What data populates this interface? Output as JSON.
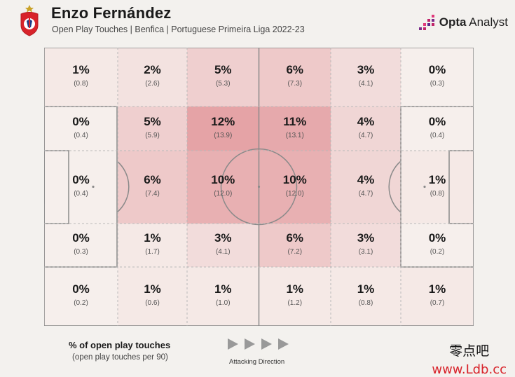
{
  "header": {
    "title": "Enzo Fernández",
    "subtitle": "Open Play Touches | Benfica | Portuguese Primeira Liga 2022-23",
    "brand": "Opta Analyst",
    "brand_bold": "Opta",
    "brand_rest": " Analyst",
    "crest_icon": "benfica-crest-icon"
  },
  "colors": {
    "background": "#f3f1ee",
    "pitch_lines": "#8a8a8a",
    "heat_low": "#f6efec",
    "heat_high": "#e5a3a6"
  },
  "chart_data": {
    "type": "heatmap",
    "title": "Enzo Fernández",
    "subtitle": "Open Play Touches | Benfica | Portuguese Primeira Liga 2022-23",
    "rows": 5,
    "cols": 6,
    "value_label": "% of open play touches",
    "secondary_label": "(open play touches per 90)",
    "direction": "Attacking Direction",
    "cells": [
      [
        {
          "pct": "1%",
          "per90": "(0.8)",
          "value": 1
        },
        {
          "pct": "2%",
          "per90": "(2.6)",
          "value": 2
        },
        {
          "pct": "5%",
          "per90": "(5.3)",
          "value": 5
        },
        {
          "pct": "6%",
          "per90": "(7.3)",
          "value": 6
        },
        {
          "pct": "3%",
          "per90": "(4.1)",
          "value": 3
        },
        {
          "pct": "0%",
          "per90": "(0.3)",
          "value": 0
        }
      ],
      [
        {
          "pct": "0%",
          "per90": "(0.4)",
          "value": 0
        },
        {
          "pct": "5%",
          "per90": "(5.9)",
          "value": 5
        },
        {
          "pct": "12%",
          "per90": "(13.9)",
          "value": 12
        },
        {
          "pct": "11%",
          "per90": "(13.1)",
          "value": 11
        },
        {
          "pct": "4%",
          "per90": "(4.7)",
          "value": 4
        },
        {
          "pct": "0%",
          "per90": "(0.4)",
          "value": 0
        }
      ],
      [
        {
          "pct": "0%",
          "per90": "(0.4)",
          "value": 0
        },
        {
          "pct": "6%",
          "per90": "(7.4)",
          "value": 6
        },
        {
          "pct": "10%",
          "per90": "(12.0)",
          "value": 10
        },
        {
          "pct": "10%",
          "per90": "(12.0)",
          "value": 10
        },
        {
          "pct": "4%",
          "per90": "(4.7)",
          "value": 4
        },
        {
          "pct": "1%",
          "per90": "(0.8)",
          "value": 1
        }
      ],
      [
        {
          "pct": "0%",
          "per90": "(0.3)",
          "value": 0
        },
        {
          "pct": "1%",
          "per90": "(1.7)",
          "value": 1
        },
        {
          "pct": "3%",
          "per90": "(4.1)",
          "value": 3
        },
        {
          "pct": "6%",
          "per90": "(7.2)",
          "value": 6
        },
        {
          "pct": "3%",
          "per90": "(3.1)",
          "value": 3
        },
        {
          "pct": "0%",
          "per90": "(0.2)",
          "value": 0
        }
      ],
      [
        {
          "pct": "0%",
          "per90": "(0.2)",
          "value": 0
        },
        {
          "pct": "1%",
          "per90": "(0.6)",
          "value": 1
        },
        {
          "pct": "1%",
          "per90": "(1.0)",
          "value": 1
        },
        {
          "pct": "1%",
          "per90": "(1.2)",
          "value": 1
        },
        {
          "pct": "1%",
          "per90": "(0.8)",
          "value": 1
        },
        {
          "pct": "1%",
          "per90": "(0.7)",
          "value": 1
        }
      ]
    ]
  },
  "legend": {
    "title": "% of open play touches",
    "subtitle": "(open play touches per 90)",
    "direction_label": "Attacking Direction",
    "arrow_icon": "play-arrow-icon"
  },
  "watermark": {
    "line1": "零点吧",
    "line2": "www.Ldb.cc"
  }
}
